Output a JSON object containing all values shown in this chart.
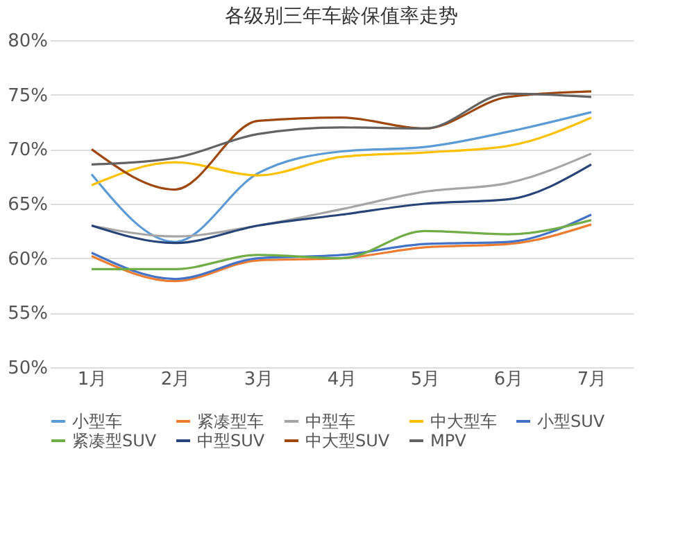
{
  "chart_data": {
    "type": "line",
    "title": "各级别三年车龄保值率走势",
    "categories": [
      "1月",
      "2月",
      "3月",
      "4月",
      "5月",
      "6月",
      "7月"
    ],
    "series": [
      {
        "name": "小型车",
        "color": "#5b9bd5",
        "values": [
          67.7,
          61.5,
          67.8,
          69.8,
          70.2,
          71.6,
          73.4
        ]
      },
      {
        "name": "紧凑型车",
        "color": "#ed7d31",
        "values": [
          60.2,
          57.9,
          59.8,
          60,
          61,
          61.3,
          63.1
        ]
      },
      {
        "name": "中型车",
        "color": "#a5a5a5",
        "values": [
          63,
          62,
          63,
          64.5,
          66.1,
          66.9,
          69.6
        ]
      },
      {
        "name": "中大型车",
        "color": "#ffc000",
        "values": [
          66.7,
          68.8,
          67.6,
          69.3,
          69.7,
          70.3,
          72.9
        ]
      },
      {
        "name": "小型SUV",
        "color": "#4472c4",
        "values": [
          60.5,
          58.1,
          60,
          60.3,
          61.3,
          61.5,
          64
        ]
      },
      {
        "name": "紧凑型SUV",
        "color": "#70ad47",
        "values": [
          59,
          59,
          60.3,
          60,
          62.5,
          62.2,
          63.5
        ]
      },
      {
        "name": "中型SUV",
        "color": "#264478",
        "values": [
          63,
          61.4,
          63,
          64,
          65,
          65.4,
          68.6
        ]
      },
      {
        "name": "中大型SUV",
        "color": "#9e480e",
        "values": [
          70,
          66.3,
          72.6,
          72.9,
          71.9,
          74.8,
          75.3
        ]
      },
      {
        "name": "MPV",
        "color": "#636363",
        "values": [
          68.6,
          69.2,
          71.4,
          72,
          71.9,
          75.1,
          74.8
        ]
      }
    ],
    "ylim": [
      50,
      80
    ],
    "yticks": [
      {
        "value": 50,
        "label": "50%"
      },
      {
        "value": 55,
        "label": "55%"
      },
      {
        "value": 60,
        "label": "60%"
      },
      {
        "value": 65,
        "label": "65%"
      },
      {
        "value": 70,
        "label": "70%"
      },
      {
        "value": 75,
        "label": "75%"
      },
      {
        "value": 80,
        "label": "80%"
      }
    ],
    "grid": "y",
    "legend": "bottom",
    "marker": "none",
    "line_style": "solid"
  }
}
